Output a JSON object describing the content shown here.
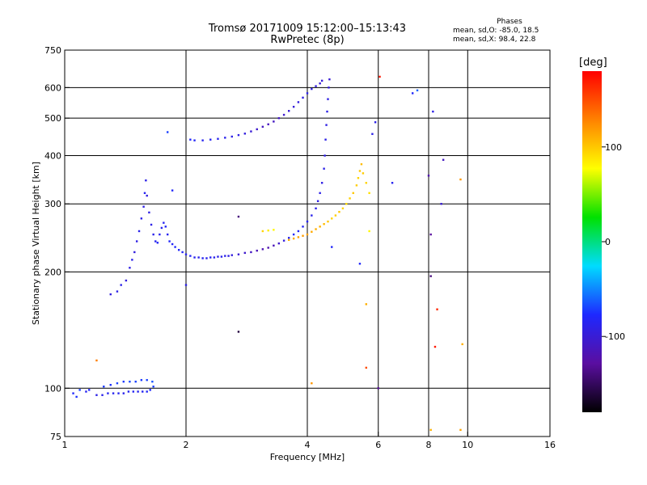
{
  "header": {
    "title": "Tromsø 20171009 15:12:00–15:13:43",
    "subtitle": "RwPretec (8p)"
  },
  "stats": {
    "heading": "Phases",
    "line_o": "mean, sd,O: -85.0, 18.5",
    "line_x": "mean, sd,X: 98.4, 22.8"
  },
  "colorbar": {
    "label": "[deg]",
    "ticks": [
      {
        "value": 100,
        "label": "100"
      },
      {
        "value": 0,
        "label": "0"
      },
      {
        "value": -100,
        "label": "-100"
      }
    ],
    "range": [
      -180,
      180
    ],
    "palette": [
      "#000000",
      "#5a0ea0",
      "#1e28ff",
      "#00dcff",
      "#00e100",
      "#ffff00",
      "#ff8200",
      "#ff0000"
    ]
  },
  "chart_data": {
    "type": "scatter",
    "xlabel": "Frequency [MHz]",
    "ylabel": "Stationary phase Virtual Height [km]",
    "xscale": "log",
    "yscale": "log",
    "xlim": [
      1,
      16
    ],
    "ylim": [
      75,
      750
    ],
    "xticks": [
      1,
      2,
      4,
      6,
      8,
      10,
      16
    ],
    "yticks": [
      75,
      100,
      200,
      300,
      400,
      500,
      600,
      750
    ],
    "grid_x": [
      2,
      4,
      6,
      8,
      10
    ],
    "grid_y": [
      100,
      200,
      300,
      400,
      500,
      600
    ],
    "series": [
      {
        "mode": "O",
        "points": [
          [
            1.05,
            97,
            -80
          ],
          [
            1.07,
            95,
            -75
          ],
          [
            1.09,
            99,
            -70
          ],
          [
            1.13,
            98,
            -85
          ],
          [
            1.15,
            99,
            -80
          ],
          [
            1.2,
            96,
            -90
          ],
          [
            1.24,
            96,
            -88
          ],
          [
            1.28,
            97,
            -85
          ],
          [
            1.32,
            97,
            -86
          ],
          [
            1.36,
            97,
            -84
          ],
          [
            1.4,
            97,
            -88
          ],
          [
            1.44,
            98,
            -85
          ],
          [
            1.48,
            98,
            -83
          ],
          [
            1.52,
            98,
            -86
          ],
          [
            1.56,
            98,
            -84
          ],
          [
            1.6,
            98,
            -80
          ],
          [
            1.63,
            99,
            -78
          ],
          [
            1.66,
            101,
            -70
          ],
          [
            1.25,
            101,
            -72
          ],
          [
            1.3,
            102,
            -75
          ],
          [
            1.35,
            103,
            -70
          ],
          [
            1.4,
            104,
            -72
          ],
          [
            1.45,
            104,
            -68
          ],
          [
            1.5,
            104,
            -70
          ],
          [
            1.55,
            105,
            -72
          ],
          [
            1.6,
            105,
            -70
          ],
          [
            1.65,
            104,
            -65
          ],
          [
            1.3,
            175,
            -95
          ],
          [
            1.35,
            178,
            -90
          ],
          [
            1.38,
            185,
            -88
          ],
          [
            1.42,
            190,
            -95
          ],
          [
            1.45,
            205,
            -92
          ],
          [
            1.47,
            215,
            -90
          ],
          [
            1.49,
            225,
            -95
          ],
          [
            1.51,
            240,
            -92
          ],
          [
            1.53,
            255,
            -88
          ],
          [
            1.55,
            275,
            -90
          ],
          [
            1.57,
            295,
            -92
          ],
          [
            1.58,
            320,
            -85
          ],
          [
            1.59,
            345,
            -90
          ],
          [
            1.6,
            315,
            -95
          ],
          [
            1.62,
            285,
            -92
          ],
          [
            1.64,
            265,
            -90
          ],
          [
            1.66,
            250,
            -88
          ],
          [
            1.68,
            240,
            -85
          ],
          [
            1.7,
            238,
            -82
          ],
          [
            1.72,
            250,
            -85
          ],
          [
            1.74,
            260,
            -88
          ],
          [
            1.76,
            268,
            -84
          ],
          [
            1.78,
            262,
            -82
          ],
          [
            1.8,
            250,
            -85
          ],
          [
            1.82,
            240,
            -80
          ],
          [
            1.85,
            236,
            -82
          ],
          [
            1.88,
            232,
            -78
          ],
          [
            1.92,
            228,
            -80
          ],
          [
            1.96,
            225,
            -82
          ],
          [
            2.0,
            222,
            -85
          ],
          [
            2.05,
            220,
            -84
          ],
          [
            2.1,
            218,
            -86
          ],
          [
            2.15,
            218,
            -88
          ],
          [
            2.2,
            217,
            -85
          ],
          [
            2.25,
            217,
            -87
          ],
          [
            2.3,
            218,
            -86
          ],
          [
            2.35,
            218,
            -88
          ],
          [
            2.4,
            219,
            -90
          ],
          [
            2.45,
            219,
            -88
          ],
          [
            2.5,
            220,
            -90
          ],
          [
            2.55,
            220,
            -92
          ],
          [
            2.6,
            221,
            -95
          ],
          [
            2.7,
            222,
            -100
          ],
          [
            2.8,
            224,
            -105
          ],
          [
            2.9,
            225,
            -110
          ],
          [
            3.0,
            227,
            -115
          ],
          [
            3.1,
            229,
            -118
          ],
          [
            3.2,
            231,
            -120
          ],
          [
            3.3,
            234,
            -115
          ],
          [
            3.4,
            237,
            -105
          ],
          [
            3.5,
            241,
            -95
          ],
          [
            3.6,
            245,
            -85
          ],
          [
            3.7,
            250,
            -80
          ],
          [
            3.8,
            255,
            -82
          ],
          [
            3.9,
            262,
            -84
          ],
          [
            4.0,
            270,
            -86
          ],
          [
            4.1,
            280,
            -88
          ],
          [
            4.2,
            292,
            -90
          ],
          [
            4.25,
            305,
            -92
          ],
          [
            4.3,
            320,
            -90
          ],
          [
            4.35,
            340,
            -92
          ],
          [
            4.4,
            370,
            -90
          ],
          [
            4.42,
            400,
            -92
          ],
          [
            4.44,
            440,
            -90
          ],
          [
            4.46,
            480,
            -92
          ],
          [
            4.48,
            520,
            -90
          ],
          [
            4.5,
            560,
            -92
          ],
          [
            4.52,
            600,
            -95
          ],
          [
            4.54,
            630,
            -100
          ],
          [
            2.05,
            440,
            -80
          ],
          [
            2.1,
            438,
            -82
          ],
          [
            2.2,
            438,
            -85
          ],
          [
            2.3,
            440,
            -84
          ],
          [
            2.4,
            442,
            -86
          ],
          [
            2.5,
            445,
            -88
          ],
          [
            2.6,
            448,
            -90
          ],
          [
            2.7,
            452,
            -92
          ],
          [
            2.8,
            456,
            -95
          ],
          [
            2.9,
            462,
            -100
          ],
          [
            3.0,
            468,
            -105
          ],
          [
            3.1,
            475,
            -110
          ],
          [
            3.2,
            482,
            -112
          ],
          [
            3.3,
            490,
            -110
          ],
          [
            3.4,
            500,
            -108
          ],
          [
            3.5,
            510,
            -105
          ],
          [
            3.6,
            522,
            -100
          ],
          [
            3.7,
            535,
            -98
          ],
          [
            3.8,
            550,
            -95
          ],
          [
            3.9,
            565,
            -92
          ],
          [
            4.0,
            580,
            -90
          ],
          [
            4.1,
            595,
            -92
          ],
          [
            4.2,
            605,
            -95
          ],
          [
            4.3,
            615,
            -100
          ],
          [
            4.35,
            625,
            -98
          ]
        ]
      },
      {
        "mode": "X",
        "points": [
          [
            3.6,
            242,
            110
          ],
          [
            3.7,
            244,
            112
          ],
          [
            3.8,
            246,
            115
          ],
          [
            3.9,
            248,
            118
          ],
          [
            4.0,
            250,
            115
          ],
          [
            4.1,
            254,
            112
          ],
          [
            4.2,
            258,
            110
          ],
          [
            4.3,
            262,
            108
          ],
          [
            4.4,
            266,
            105
          ],
          [
            4.5,
            270,
            100
          ],
          [
            4.6,
            275,
            95
          ],
          [
            4.7,
            280,
            98
          ],
          [
            4.8,
            286,
            100
          ],
          [
            4.9,
            292,
            95
          ],
          [
            5.0,
            300,
            92
          ],
          [
            5.1,
            310,
            96
          ],
          [
            5.2,
            320,
            100
          ],
          [
            5.3,
            335,
            98
          ],
          [
            5.35,
            350,
            95
          ],
          [
            5.4,
            365,
            100
          ],
          [
            5.45,
            380,
            105
          ],
          [
            5.5,
            360,
            98
          ],
          [
            5.6,
            340,
            95
          ],
          [
            5.7,
            320,
            90
          ],
          [
            3.1,
            255,
            95
          ],
          [
            3.2,
            256,
            85
          ],
          [
            3.3,
            257,
            80
          ]
        ]
      },
      {
        "mode": "scattered",
        "points": [
          [
            1.2,
            118,
            130
          ],
          [
            1.8,
            460,
            -70
          ],
          [
            1.85,
            325,
            -80
          ],
          [
            2.0,
            185,
            -90
          ],
          [
            2.7,
            140,
            -160
          ],
          [
            2.7,
            278,
            -140
          ],
          [
            4.1,
            103,
            120
          ],
          [
            4.6,
            232,
            -80
          ],
          [
            5.4,
            210,
            -80
          ],
          [
            5.6,
            113,
            150
          ],
          [
            5.6,
            165,
            110
          ],
          [
            5.8,
            455,
            -90
          ],
          [
            5.9,
            488,
            -90
          ],
          [
            6.0,
            100,
            -130
          ],
          [
            6.05,
            640,
            170
          ],
          [
            5.7,
            255,
            80
          ],
          [
            6.5,
            340,
            -85
          ],
          [
            7.3,
            580,
            -80
          ],
          [
            7.5,
            590,
            -60
          ],
          [
            8.0,
            355,
            -120
          ],
          [
            8.1,
            195,
            -140
          ],
          [
            8.1,
            250,
            -130
          ],
          [
            8.2,
            520,
            -90
          ],
          [
            8.3,
            128,
            170
          ],
          [
            8.4,
            160,
            165
          ],
          [
            8.6,
            300,
            -100
          ],
          [
            8.7,
            390,
            -110
          ],
          [
            9.6,
            347,
            120
          ],
          [
            9.6,
            78,
            115
          ],
          [
            9.7,
            130,
            110
          ],
          [
            8.1,
            78,
            110
          ]
        ]
      }
    ]
  }
}
